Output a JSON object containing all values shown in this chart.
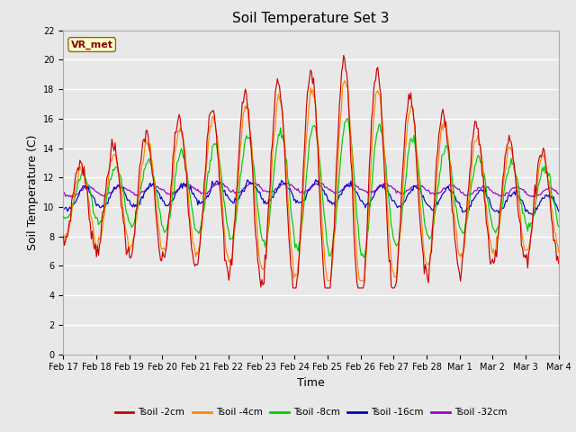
{
  "title": "Soil Temperature Set 3",
  "xlabel": "Time",
  "ylabel": "Soil Temperature (C)",
  "ylim": [
    0,
    22
  ],
  "yticks": [
    0,
    2,
    4,
    6,
    8,
    10,
    12,
    14,
    16,
    18,
    20,
    22
  ],
  "xtick_labels": [
    "Feb 17",
    "Feb 18",
    "Feb 19",
    "Feb 20",
    "Feb 21",
    "Feb 22",
    "Feb 23",
    "Feb 24",
    "Feb 25",
    "Feb 26",
    "Feb 27",
    "Feb 28",
    "Mar 1",
    "Mar 2",
    "Mar 3",
    "Mar 4"
  ],
  "series_colors": [
    "#cc0000",
    "#ff8800",
    "#00cc00",
    "#0000cc",
    "#9900cc"
  ],
  "series_labels": [
    "Tsoil -2cm",
    "Tsoil -4cm",
    "Tsoil -8cm",
    "Tsoil -16cm",
    "Tsoil -32cm"
  ],
  "annotation_text": "VR_met",
  "bg_color": "#e8e8e8",
  "grid_color": "#ffffff",
  "title_fontsize": 11,
  "axis_label_fontsize": 9,
  "tick_fontsize": 7,
  "n_points": 480
}
